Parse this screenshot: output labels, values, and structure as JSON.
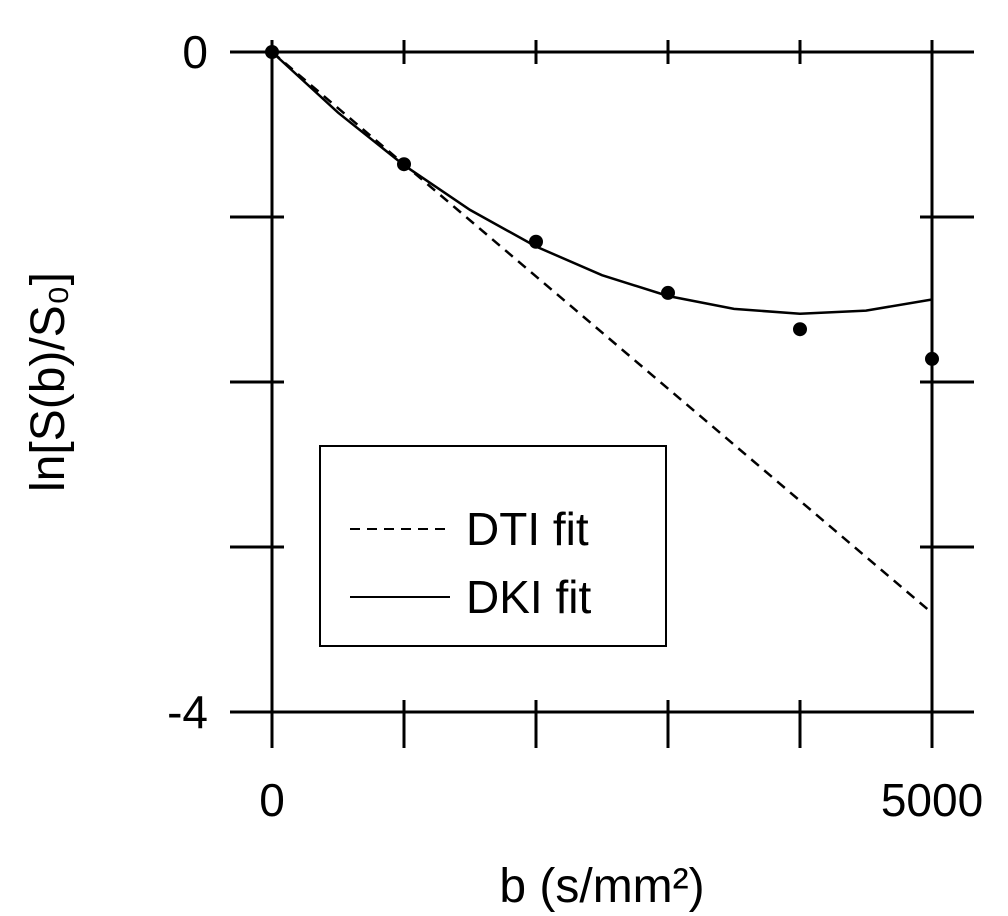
{
  "colors": {
    "line": "#000000",
    "background": "#ffffff"
  },
  "chart_data": {
    "type": "line",
    "xlabel": "b (s/mm²)",
    "ylabel": "ln[S(b)/S₀]",
    "xlim": [
      0,
      5000
    ],
    "ylim": [
      -4,
      0
    ],
    "x_tick_values": [
      0,
      1000,
      2000,
      3000,
      4000,
      5000
    ],
    "x_tick_labels": [
      "0",
      "",
      "",
      "",
      "",
      "5000"
    ],
    "y_tick_values": [
      0,
      -1,
      -2,
      -3,
      -4
    ],
    "y_tick_labels": [
      "0",
      "",
      "",
      "",
      "-4"
    ],
    "grid": false,
    "legend_position": "lower-left",
    "points": {
      "x": [
        0,
        1000,
        2000,
        3000,
        4000,
        5000
      ],
      "y": [
        0,
        -0.68,
        -1.15,
        -1.46,
        -1.68,
        -1.86
      ]
    },
    "series": [
      {
        "name": "DTI fit",
        "style": "dashed",
        "x": [
          0,
          5000
        ],
        "y": [
          0,
          -3.4
        ]
      },
      {
        "name": "DKI fit",
        "style": "solid",
        "x": [
          0,
          500,
          1000,
          1500,
          2000,
          2500,
          3000,
          3500,
          4000,
          4500,
          5000
        ],
        "y": [
          0,
          -0.367,
          -0.686,
          -0.957,
          -1.179,
          -1.353,
          -1.479,
          -1.557,
          -1.586,
          -1.567,
          -1.5
        ]
      }
    ]
  }
}
